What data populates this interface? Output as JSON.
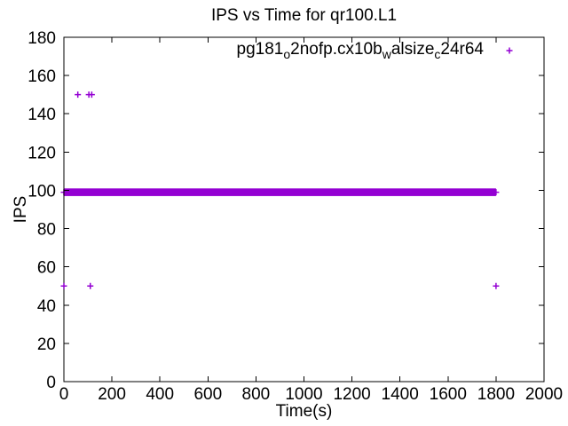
{
  "title": "IPS vs Time for qr100.L1",
  "colors": {
    "series": "#9400d3",
    "axis": "#000000",
    "background": "#ffffff",
    "text": "#000000"
  },
  "legend": {
    "series_raw_name": "pg181_o2nofp.cx10b_walsize_c24r64",
    "marker_glyph": "+",
    "segments": [
      {
        "text": "pg181",
        "sub": false
      },
      {
        "text": "o",
        "sub": true
      },
      {
        "text": "2nofp.cx10b",
        "sub": false
      },
      {
        "text": "w",
        "sub": true
      },
      {
        "text": "alsize",
        "sub": false
      },
      {
        "text": "c",
        "sub": true
      },
      {
        "text": "24r64",
        "sub": false
      }
    ]
  },
  "chart_data": {
    "type": "scatter",
    "title": "IPS vs Time for qr100.L1",
    "xlabel": "Time(s)",
    "ylabel": "IPS",
    "xlim": [
      0,
      2000
    ],
    "ylim": [
      0,
      180
    ],
    "xticks": [
      0,
      200,
      400,
      600,
      800,
      1000,
      1200,
      1400,
      1600,
      1800,
      2000
    ],
    "yticks": [
      0,
      20,
      40,
      60,
      80,
      100,
      120,
      140,
      160,
      180
    ],
    "grid": false,
    "ticks_mirrored_inward": true,
    "legend_position": "top-right-inside",
    "marker": "plus",
    "series": [
      {
        "name": "pg181_o2nofp.cx10b_walsize_c24r64",
        "color": "#9400d3",
        "ips_band": {
          "t_start": 0,
          "t_end": 1800,
          "ips_min": 97,
          "ips_max": 101,
          "ips_typical": 99,
          "description": "dense horizontal band of overlapping + markers at IPS ~99-100 spanning t=0..1800"
        },
        "outlier_points": [
          [
            58,
            150
          ],
          [
            104,
            150
          ],
          [
            116,
            150
          ],
          [
            0,
            50
          ],
          [
            110,
            50
          ],
          [
            1800,
            50
          ]
        ]
      }
    ]
  }
}
